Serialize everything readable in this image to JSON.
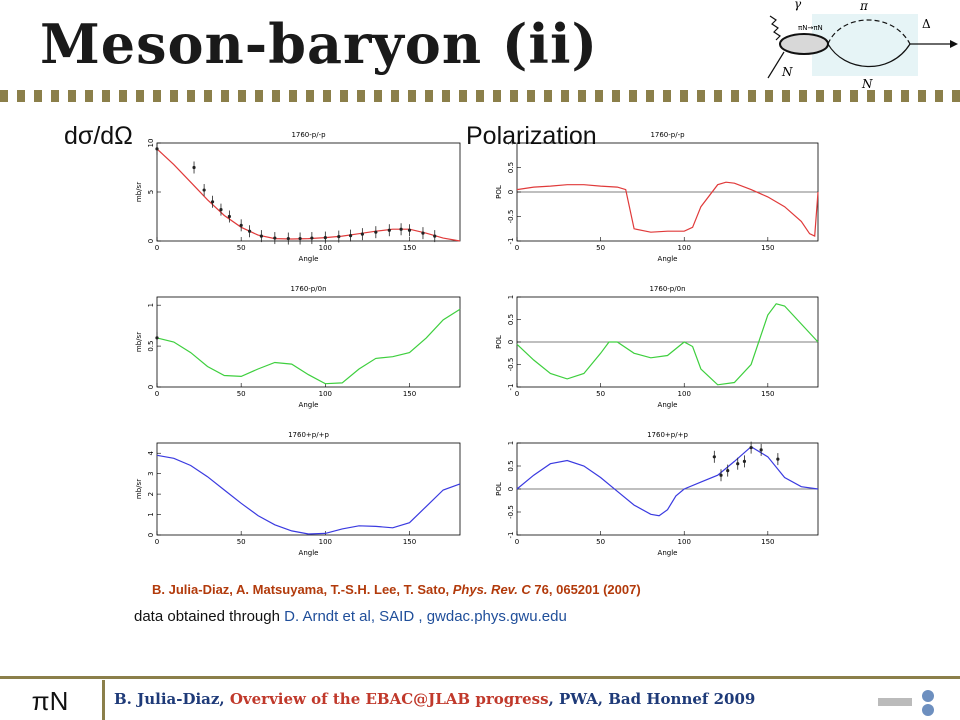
{
  "slide": {
    "title": "Meson-baryon (ii)",
    "col_left": "dσ/dΩ",
    "col_right": "Polarization",
    "cite_authors": "B. Julia-Diaz, A. Matsuyama, T.-S.H. Lee, T. Sato, ",
    "cite_journal": "Phys. Rev. C",
    "cite_rest": " 76, 065201 (2007)",
    "credit_pre": "data obtained through ",
    "credit_ref": "D. Arndt et al, SAID",
    "credit_post": " , gwdac.phys.gwu.edu",
    "footer_left": "πN",
    "footer_author": "B. Julia-Diaz, ",
    "footer_talk": "Overview of the EBAC@JLAB progress",
    "footer_venue": ", PWA, Bad Honnef 2009",
    "diagram_labels": {
      "gamma": "γ",
      "N_in": "N",
      "pi": "π",
      "N_out": "N",
      "Delta": "Δ",
      "mid": "πN→πN"
    }
  },
  "chart_data": [
    {
      "type": "line",
      "title": "1760-p/-p",
      "xlabel": "Angle",
      "ylabel": "mb/sr",
      "xlim": [
        0,
        180
      ],
      "ylim": [
        0,
        10
      ],
      "yticks": [
        0,
        5,
        10
      ],
      "xticks": [
        0,
        50,
        100,
        150
      ],
      "color": "#e03a3a",
      "series": [
        {
          "x": [
            0,
            10,
            20,
            30,
            40,
            50,
            60,
            70,
            80,
            90,
            100,
            110,
            120,
            130,
            140,
            150,
            160,
            170,
            180
          ],
          "y": [
            9.4,
            7.8,
            6.0,
            4.2,
            2.6,
            1.4,
            0.6,
            0.25,
            0.2,
            0.25,
            0.35,
            0.5,
            0.75,
            1.0,
            1.2,
            1.2,
            0.8,
            0.3,
            0.0
          ]
        }
      ],
      "points": {
        "x": [
          0,
          22,
          28,
          33,
          38,
          43,
          50,
          55,
          62,
          70,
          78,
          85,
          92,
          100,
          108,
          115,
          122,
          130,
          138,
          145,
          150,
          158,
          165
        ],
        "y": [
          9.4,
          7.5,
          5.2,
          4.0,
          3.2,
          2.5,
          1.6,
          1.0,
          0.5,
          0.3,
          0.25,
          0.25,
          0.3,
          0.35,
          0.45,
          0.55,
          0.7,
          0.9,
          1.1,
          1.2,
          1.1,
          0.8,
          0.5
        ]
      }
    },
    {
      "type": "line",
      "title": "1760-p/-p",
      "xlabel": "Angle",
      "ylabel": "POL",
      "xlim": [
        0,
        180
      ],
      "ylim": [
        -1,
        1
      ],
      "yticks": [
        -1,
        -0.5,
        0,
        0.5,
        1
      ],
      "xticks": [
        0,
        50,
        100,
        150
      ],
      "color": "#e03a3a",
      "series": [
        {
          "x": [
            0,
            10,
            20,
            30,
            40,
            50,
            60,
            65,
            70,
            80,
            90,
            100,
            105,
            110,
            120,
            125,
            130,
            140,
            150,
            160,
            170,
            175,
            178,
            180
          ],
          "y": [
            0.05,
            0.1,
            0.12,
            0.15,
            0.15,
            0.12,
            0.1,
            0.05,
            -0.75,
            -0.82,
            -0.8,
            -0.8,
            -0.72,
            -0.3,
            0.15,
            0.2,
            0.18,
            0.05,
            -0.1,
            -0.3,
            -0.6,
            -0.85,
            -0.9,
            0.0
          ]
        }
      ]
    },
    {
      "type": "line",
      "title": "1760-p/0n",
      "xlabel": "Angle",
      "ylabel": "mb/sr",
      "xlim": [
        0,
        180
      ],
      "ylim": [
        0,
        1.1
      ],
      "yticks": [
        0,
        0.5,
        1
      ],
      "xticks": [
        0,
        50,
        100,
        150
      ],
      "color": "#3ecf3e",
      "series": [
        {
          "x": [
            0,
            10,
            20,
            30,
            40,
            50,
            60,
            70,
            80,
            90,
            100,
            110,
            120,
            130,
            140,
            150,
            160,
            170,
            180
          ],
          "y": [
            0.6,
            0.55,
            0.42,
            0.25,
            0.14,
            0.13,
            0.22,
            0.3,
            0.28,
            0.15,
            0.04,
            0.05,
            0.22,
            0.35,
            0.37,
            0.42,
            0.6,
            0.82,
            0.95
          ]
        }
      ],
      "points": {
        "x": [
          0
        ],
        "y": [
          0.6
        ]
      }
    },
    {
      "type": "line",
      "title": "1760-p/0n",
      "xlabel": "Angle",
      "ylabel": "POL",
      "xlim": [
        0,
        180
      ],
      "ylim": [
        -1,
        1
      ],
      "yticks": [
        -1,
        -0.5,
        0,
        0.5,
        1
      ],
      "xticks": [
        0,
        50,
        100,
        150
      ],
      "color": "#3ecf3e",
      "series": [
        {
          "x": [
            0,
            10,
            20,
            30,
            40,
            50,
            55,
            60,
            70,
            80,
            90,
            100,
            105,
            110,
            120,
            130,
            140,
            150,
            155,
            160,
            170,
            180
          ],
          "y": [
            -0.05,
            -0.4,
            -0.7,
            -0.82,
            -0.7,
            -0.25,
            0.0,
            0.0,
            -0.25,
            -0.35,
            -0.3,
            0.0,
            -0.1,
            -0.6,
            -0.95,
            -0.9,
            -0.5,
            0.6,
            0.85,
            0.8,
            0.4,
            0.0
          ]
        }
      ]
    },
    {
      "type": "line",
      "title": "1760+p/+p",
      "xlabel": "Angle",
      "ylabel": "mb/sr",
      "xlim": [
        0,
        180
      ],
      "ylim": [
        0,
        4.5
      ],
      "yticks": [
        0,
        1,
        2,
        3,
        4
      ],
      "xticks": [
        0,
        50,
        100,
        150
      ],
      "color": "#3a3ae0",
      "series": [
        {
          "x": [
            0,
            10,
            20,
            30,
            40,
            50,
            60,
            70,
            80,
            90,
            100,
            110,
            120,
            130,
            140,
            150,
            160,
            170,
            180
          ],
          "y": [
            3.9,
            3.75,
            3.4,
            2.85,
            2.2,
            1.55,
            0.95,
            0.5,
            0.2,
            0.05,
            0.08,
            0.3,
            0.45,
            0.42,
            0.35,
            0.6,
            1.4,
            2.2,
            2.5
          ]
        }
      ]
    },
    {
      "type": "line",
      "title": "1760+p/+p",
      "xlabel": "Angle",
      "ylabel": "POL",
      "xlim": [
        0,
        180
      ],
      "ylim": [
        -1,
        1
      ],
      "yticks": [
        -1,
        -0.5,
        0,
        0.5,
        1
      ],
      "xticks": [
        0,
        50,
        100,
        150
      ],
      "color": "#3a3ae0",
      "series": [
        {
          "x": [
            0,
            10,
            20,
            30,
            40,
            50,
            60,
            70,
            80,
            85,
            90,
            95,
            100,
            110,
            120,
            130,
            140,
            150,
            160,
            170,
            180
          ],
          "y": [
            0.0,
            0.3,
            0.55,
            0.62,
            0.5,
            0.25,
            -0.05,
            -0.35,
            -0.55,
            -0.58,
            -0.45,
            -0.15,
            0.0,
            0.15,
            0.3,
            0.6,
            0.92,
            0.7,
            0.25,
            0.05,
            0.0
          ]
        }
      ],
      "points": {
        "x": [
          118,
          122,
          126,
          132,
          136,
          140,
          146,
          156
        ],
        "y": [
          0.7,
          0.3,
          0.4,
          0.55,
          0.6,
          0.9,
          0.85,
          0.65
        ]
      }
    }
  ]
}
